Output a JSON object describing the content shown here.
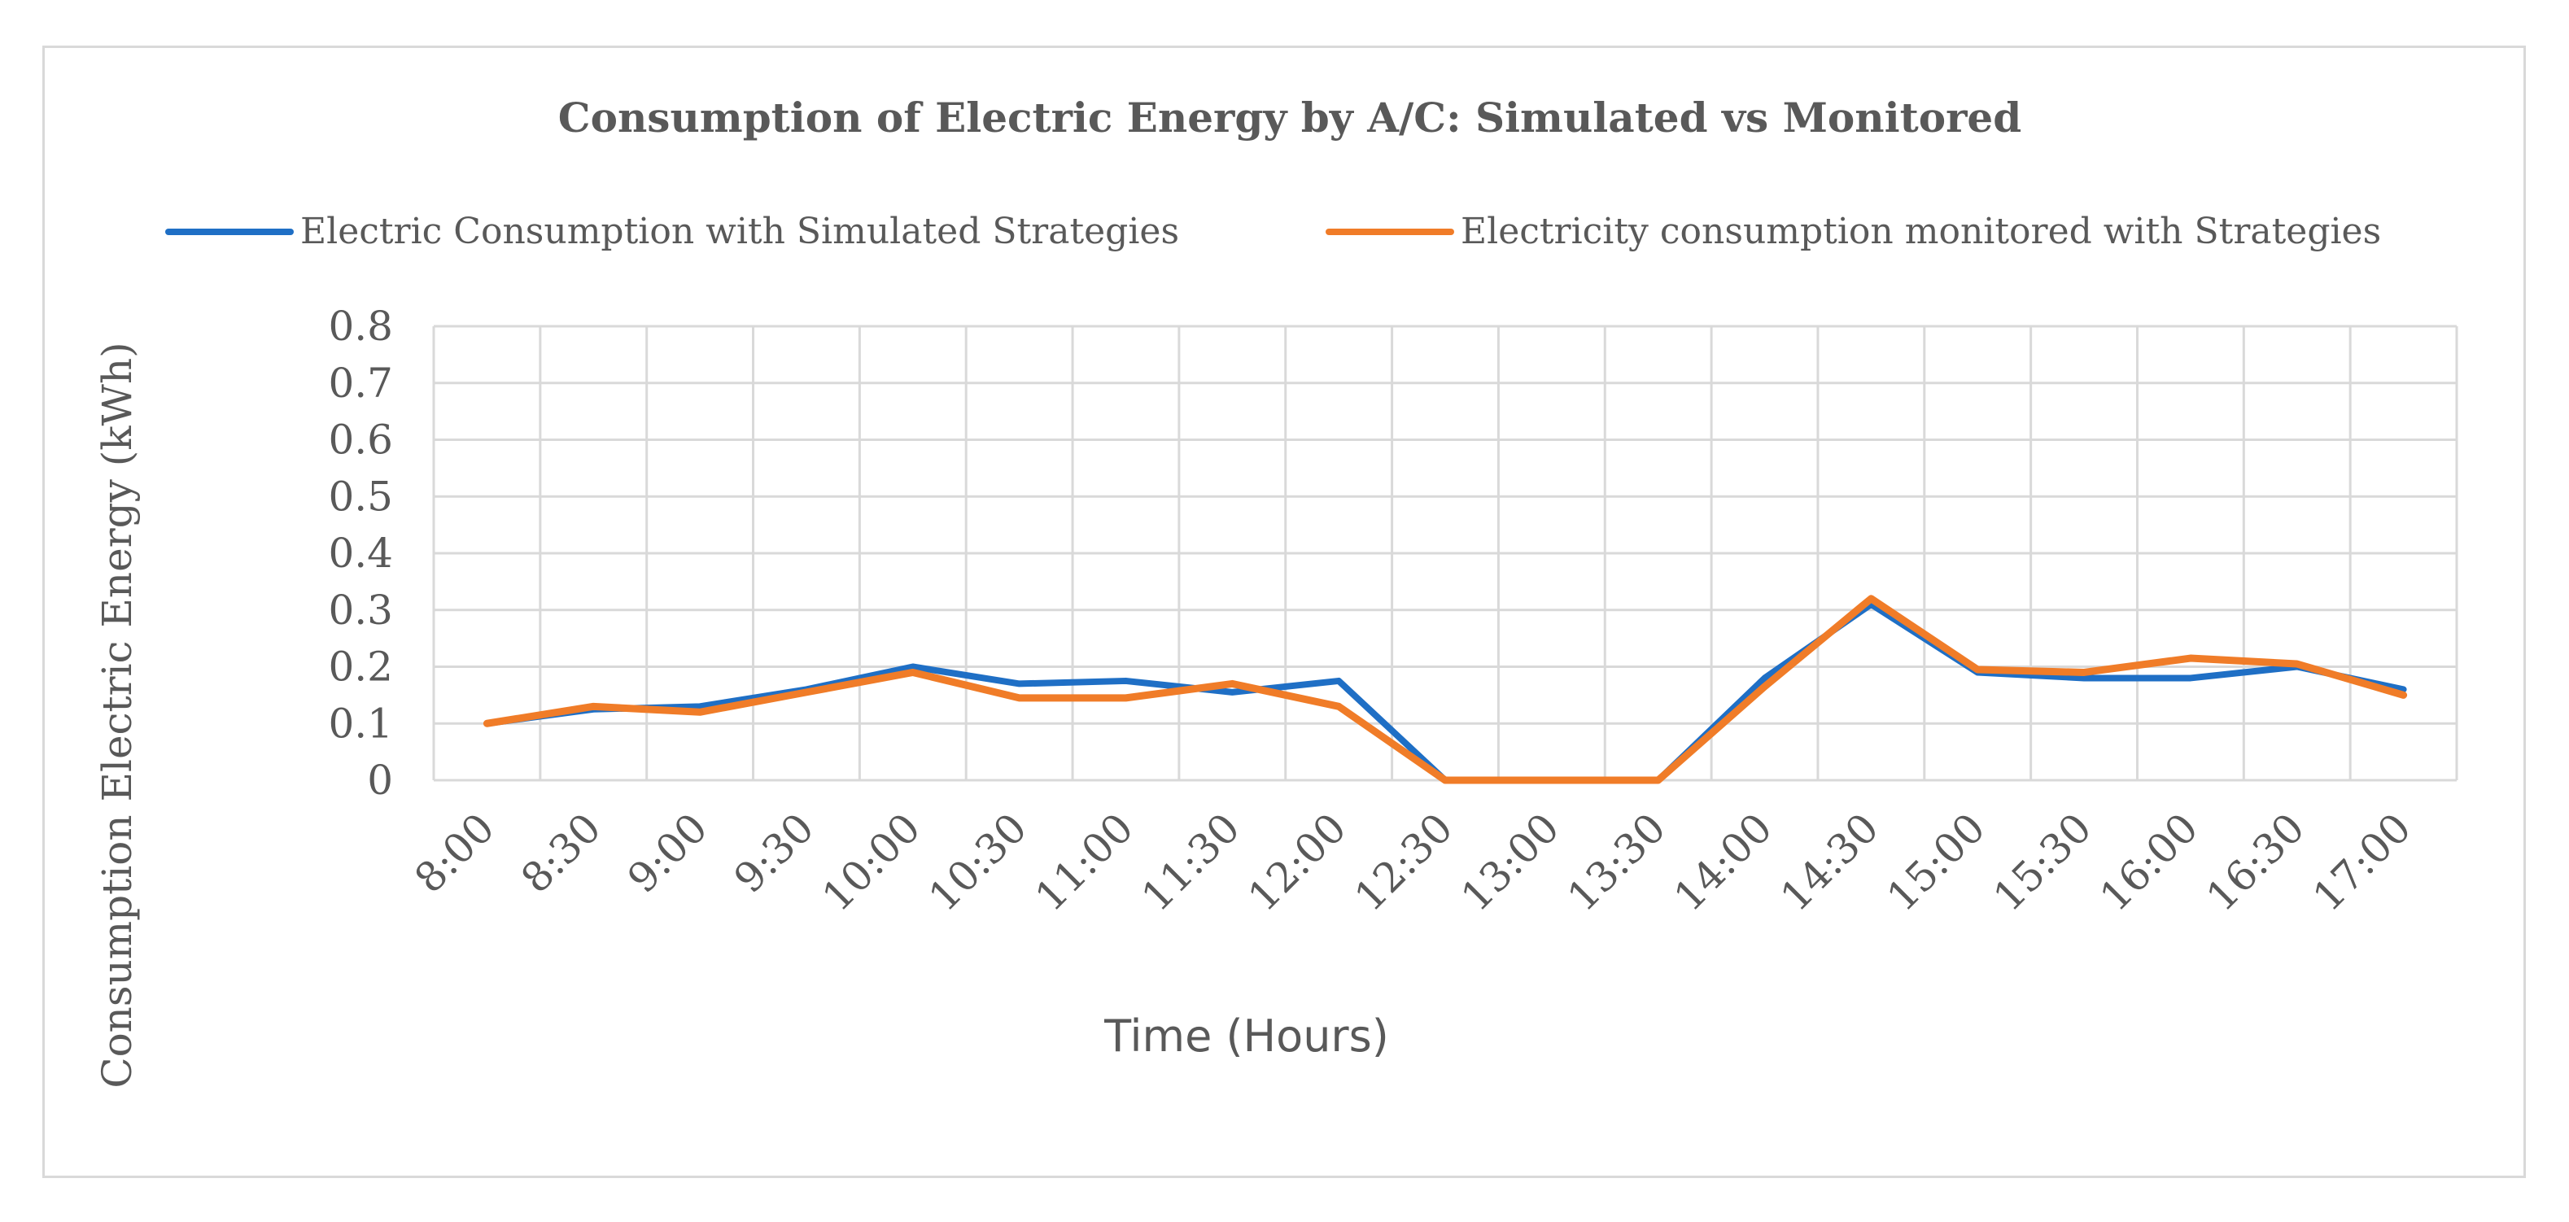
{
  "chart_data": {
    "type": "line",
    "title": "Consumption of Electric Energy by A/C: Simulated vs Monitored",
    "xlabel": "Time (Hours)",
    "ylabel": "Consumption Electric Energy (kWh)",
    "ylim": [
      0,
      0.8
    ],
    "yticks": [
      "0",
      "0.1",
      "0.2",
      "0.3",
      "0.4",
      "0.5",
      "0.6",
      "0.7",
      "0.8"
    ],
    "grid": true,
    "legend_position": "top",
    "categories": [
      "8:00",
      "8:30",
      "9:00",
      "9:30",
      "10:00",
      "10:30",
      "11:00",
      "11:30",
      "12:00",
      "12:30",
      "13:00",
      "13:30",
      "14:00",
      "14:30",
      "15:00",
      "15:30",
      "16:00",
      "16:30",
      "17:00"
    ],
    "series": [
      {
        "name": "Electric Consumption with Simulated Strategies",
        "color": "#1f6fc5",
        "values": [
          0.1,
          0.125,
          0.13,
          0.16,
          0.2,
          0.17,
          0.175,
          0.155,
          0.175,
          0.0,
          0.0,
          0.0,
          0.18,
          0.31,
          0.19,
          0.18,
          0.18,
          0.2,
          0.16
        ]
      },
      {
        "name": "Electricity consumption monitored with Strategies",
        "color": "#f07c28",
        "values": [
          0.1,
          0.13,
          0.12,
          0.155,
          0.19,
          0.145,
          0.145,
          0.17,
          0.13,
          0.0,
          0.0,
          0.0,
          0.165,
          0.32,
          0.195,
          0.19,
          0.215,
          0.205,
          0.15
        ]
      }
    ]
  }
}
